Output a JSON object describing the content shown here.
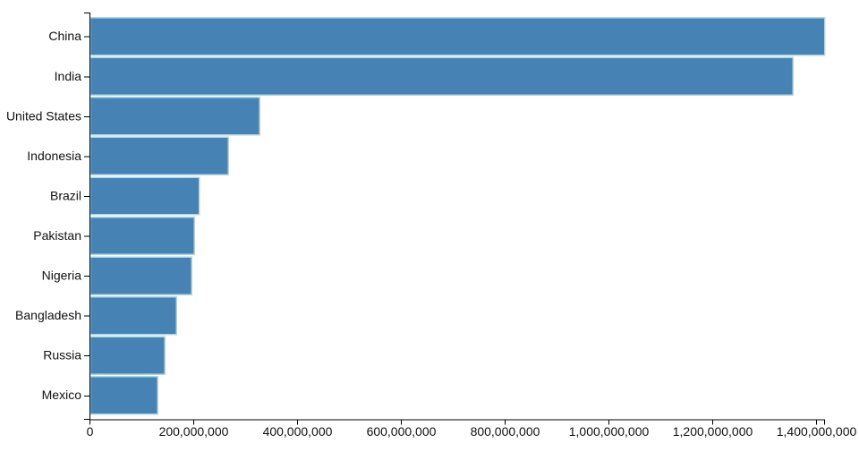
{
  "chart_data": {
    "type": "bar",
    "orientation": "horizontal",
    "title": "",
    "xlabel": "",
    "ylabel": "",
    "grid": false,
    "legend": null,
    "categories": [
      "China",
      "India",
      "United States",
      "Indonesia",
      "Brazil",
      "Pakistan",
      "Nigeria",
      "Bangladesh",
      "Russia",
      "Mexico"
    ],
    "values": [
      1415045928,
      1354051854,
      326766748,
      266794980,
      210867954,
      200813818,
      195875237,
      166368149,
      143964709,
      130759074
    ],
    "xlim": [
      0,
      1415045928
    ],
    "x_ticks": [
      {
        "value": 0,
        "label": "0"
      },
      {
        "value": 200000000,
        "label": "200,000,000"
      },
      {
        "value": 400000000,
        "label": "400,000,000"
      },
      {
        "value": 600000000,
        "label": "600,000,000"
      },
      {
        "value": 800000000,
        "label": "800,000,000"
      },
      {
        "value": 1000000000,
        "label": "1,000,000,000"
      },
      {
        "value": 1200000000,
        "label": "1,200,000,000"
      },
      {
        "value": 1400000000,
        "label": "1,400,000,000"
      }
    ],
    "colors": {
      "bar_fill": "#4682B4",
      "bar_stroke": "#ADD8E6",
      "axis": "#000000",
      "text": "#111111",
      "background": "#ffffff"
    }
  }
}
